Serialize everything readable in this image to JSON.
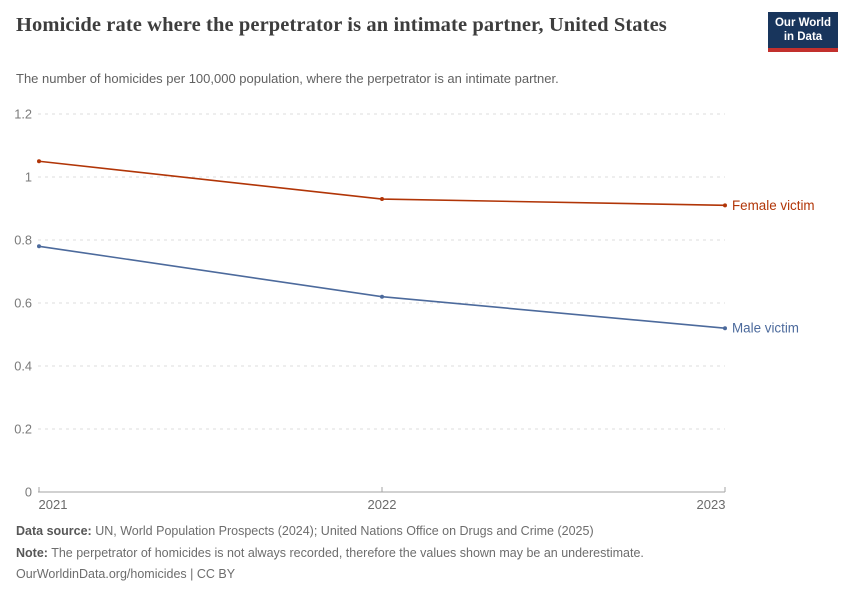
{
  "header": {
    "title": "Homicide rate where the perpetrator is an intimate partner, United States",
    "subtitle": "The number of homicides per 100,000 population, where the perpetrator is an intimate partner.",
    "logo": {
      "line1": "Our World",
      "line2": "in Data"
    }
  },
  "chart_data": {
    "type": "line",
    "title": "Homicide rate where the perpetrator is an intimate partner, United States",
    "x": [
      2021,
      2022,
      2023
    ],
    "xtick_labels": [
      "2021",
      "2022",
      "2023"
    ],
    "series": [
      {
        "name": "Female victim",
        "color": "#b13507",
        "values": [
          1.05,
          0.93,
          0.91
        ]
      },
      {
        "name": "Male victim",
        "color": "#4c6a9c",
        "values": [
          0.78,
          0.62,
          0.52
        ]
      }
    ],
    "ylim": [
      0,
      1.2
    ],
    "yticks": [
      0,
      0.2,
      0.4,
      0.6,
      0.8,
      1,
      1.2
    ],
    "ytick_labels": [
      "0",
      "0.2",
      "0.4",
      "0.6",
      "0.8",
      "1",
      "1.2"
    ],
    "xlabel": "",
    "ylabel": "",
    "grid": "dashed-horizontal",
    "legend_position": "right-of-line-ends",
    "colors": {
      "grid": "#dcdcdc",
      "axis": "#a3a3a3",
      "tick_text": "#7a7a7a"
    }
  },
  "footer": {
    "sources_label": "Data source:",
    "sources_text": "UN, World Population Prospects (2024); United Nations Office on Drugs and Crime (2025)",
    "note_label": "Note:",
    "note_text": "The perpetrator of homicides is not always recorded, therefore the values shown may be an underestimate.",
    "origin": "OurWorldinData.org/homicides | CC BY"
  }
}
